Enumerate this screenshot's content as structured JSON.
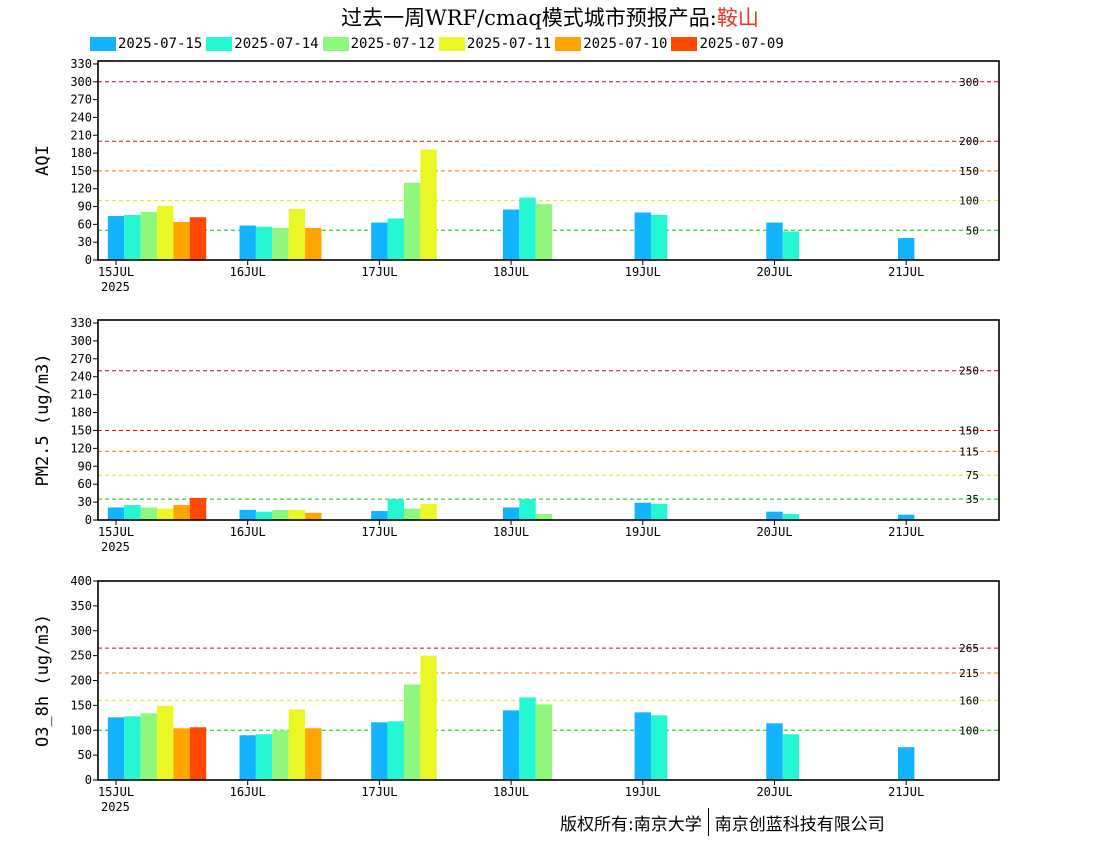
{
  "header": {
    "title": "过去一周WRF/cmaq模式城市预报产品:",
    "city": "鞍山"
  },
  "legend": [
    {
      "label": "2025-07-15",
      "color": "#12b4ff"
    },
    {
      "label": "2025-07-14",
      "color": "#25f7d2"
    },
    {
      "label": "2025-07-12",
      "color": "#8ff77b"
    },
    {
      "label": "2025-07-11",
      "color": "#eaf725"
    },
    {
      "label": "2025-07-10",
      "color": "#ffa400"
    },
    {
      "label": "2025-07-09",
      "color": "#ff4800"
    }
  ],
  "footer": {
    "left": "版权所有:南京大学",
    "right": "南京创蓝科技有限公司"
  },
  "chart_data": [
    {
      "type": "bar",
      "ylabel": "AQI",
      "ylim": [
        0,
        335
      ],
      "yticks": [
        0,
        30,
        60,
        90,
        120,
        150,
        180,
        210,
        240,
        270,
        300,
        330
      ],
      "xticks": [
        "15JUL",
        "16JUL",
        "17JUL",
        "18JUL",
        "19JUL",
        "20JUL",
        "21JUL"
      ],
      "year_label": "2025",
      "thresholds": [
        {
          "value": 300,
          "label": "300",
          "color": "#c8003c"
        },
        {
          "value": 200,
          "label": "200",
          "color": "#dd1111"
        },
        {
          "value": 150,
          "label": "150",
          "color": "#f07800"
        },
        {
          "value": 100,
          "label": "100",
          "color": "#e8e800"
        },
        {
          "value": 50,
          "label": "50",
          "color": "#00c800"
        }
      ],
      "bars": [
        {
          "day": 0,
          "offset": 0,
          "series": 0,
          "value": 74
        },
        {
          "day": 0,
          "offset": 1,
          "series": 1,
          "value": 76
        },
        {
          "day": 0,
          "offset": 2,
          "series": 2,
          "value": 81
        },
        {
          "day": 0,
          "offset": 3,
          "series": 3,
          "value": 91
        },
        {
          "day": 0,
          "offset": 4,
          "series": 4,
          "value": 64
        },
        {
          "day": 0,
          "offset": 5,
          "series": 5,
          "value": 72
        },
        {
          "day": 1,
          "offset": 0,
          "series": 0,
          "value": 58
        },
        {
          "day": 1,
          "offset": 1,
          "series": 1,
          "value": 56
        },
        {
          "day": 1,
          "offset": 2,
          "series": 2,
          "value": 54
        },
        {
          "day": 1,
          "offset": 3,
          "series": 3,
          "value": 86
        },
        {
          "day": 1,
          "offset": 4,
          "series": 4,
          "value": 54
        },
        {
          "day": 2,
          "offset": 0,
          "series": 0,
          "value": 63
        },
        {
          "day": 2,
          "offset": 1,
          "series": 1,
          "value": 70
        },
        {
          "day": 2,
          "offset": 2,
          "series": 2,
          "value": 130
        },
        {
          "day": 2,
          "offset": 3,
          "series": 3,
          "value": 186
        },
        {
          "day": 3,
          "offset": 0,
          "series": 0,
          "value": 85
        },
        {
          "day": 3,
          "offset": 1,
          "series": 1,
          "value": 105
        },
        {
          "day": 3,
          "offset": 2,
          "series": 2,
          "value": 94
        },
        {
          "day": 4,
          "offset": 0,
          "series": 0,
          "value": 80
        },
        {
          "day": 4,
          "offset": 1,
          "series": 1,
          "value": 76
        },
        {
          "day": 5,
          "offset": 0,
          "series": 0,
          "value": 63
        },
        {
          "day": 5,
          "offset": 1,
          "series": 1,
          "value": 48
        },
        {
          "day": 6,
          "offset": 0,
          "series": 0,
          "value": 37
        }
      ]
    },
    {
      "type": "bar",
      "ylabel": "PM2.5 (ug/m3)",
      "ylim": [
        0,
        335
      ],
      "yticks": [
        0,
        30,
        60,
        90,
        120,
        150,
        180,
        210,
        240,
        270,
        300,
        330
      ],
      "xticks": [
        "15JUL",
        "16JUL",
        "17JUL",
        "18JUL",
        "19JUL",
        "20JUL",
        "21JUL"
      ],
      "year_label": "2025",
      "thresholds": [
        {
          "value": 250,
          "label": "250",
          "color": "#c8003c"
        },
        {
          "value": 150,
          "label": "150",
          "color": "#dd1111"
        },
        {
          "value": 115,
          "label": "115",
          "color": "#f07800"
        },
        {
          "value": 75,
          "label": "75",
          "color": "#e8e800"
        },
        {
          "value": 35,
          "label": "35",
          "color": "#00c800"
        }
      ],
      "bars": [
        {
          "day": 0,
          "offset": 0,
          "series": 0,
          "value": 21
        },
        {
          "day": 0,
          "offset": 1,
          "series": 1,
          "value": 25
        },
        {
          "day": 0,
          "offset": 2,
          "series": 2,
          "value": 21
        },
        {
          "day": 0,
          "offset": 3,
          "series": 3,
          "value": 19
        },
        {
          "day": 0,
          "offset": 4,
          "series": 4,
          "value": 25
        },
        {
          "day": 0,
          "offset": 5,
          "series": 5,
          "value": 37
        },
        {
          "day": 1,
          "offset": 0,
          "series": 0,
          "value": 17
        },
        {
          "day": 1,
          "offset": 1,
          "series": 1,
          "value": 14
        },
        {
          "day": 1,
          "offset": 2,
          "series": 2,
          "value": 17
        },
        {
          "day": 1,
          "offset": 3,
          "series": 3,
          "value": 17
        },
        {
          "day": 1,
          "offset": 4,
          "series": 4,
          "value": 12
        },
        {
          "day": 2,
          "offset": 0,
          "series": 0,
          "value": 15
        },
        {
          "day": 2,
          "offset": 1,
          "series": 1,
          "value": 35
        },
        {
          "day": 2,
          "offset": 2,
          "series": 2,
          "value": 19
        },
        {
          "day": 2,
          "offset": 3,
          "series": 3,
          "value": 27
        },
        {
          "day": 3,
          "offset": 0,
          "series": 0,
          "value": 21
        },
        {
          "day": 3,
          "offset": 1,
          "series": 1,
          "value": 35
        },
        {
          "day": 3,
          "offset": 2,
          "series": 2,
          "value": 10
        },
        {
          "day": 4,
          "offset": 0,
          "series": 0,
          "value": 29
        },
        {
          "day": 4,
          "offset": 1,
          "series": 1,
          "value": 27
        },
        {
          "day": 5,
          "offset": 0,
          "series": 0,
          "value": 14
        },
        {
          "day": 5,
          "offset": 1,
          "series": 1,
          "value": 10
        },
        {
          "day": 6,
          "offset": 0,
          "series": 0,
          "value": 9
        }
      ]
    },
    {
      "type": "bar",
      "ylabel": "O3_8h (ug/m3)",
      "ylim": [
        0,
        400
      ],
      "yticks": [
        0,
        50,
        100,
        150,
        200,
        250,
        300,
        350,
        400
      ],
      "xticks": [
        "15JUL",
        "16JUL",
        "17JUL",
        "18JUL",
        "19JUL",
        "20JUL",
        "21JUL"
      ],
      "year_label": "2025",
      "thresholds": [
        {
          "value": 265,
          "label": "265",
          "color": "#c8003c"
        },
        {
          "value": 215,
          "label": "215",
          "color": "#f07800"
        },
        {
          "value": 160,
          "label": "160",
          "color": "#e8e800"
        },
        {
          "value": 100,
          "label": "100",
          "color": "#00c800"
        }
      ],
      "bars": [
        {
          "day": 0,
          "offset": 0,
          "series": 0,
          "value": 126
        },
        {
          "day": 0,
          "offset": 1,
          "series": 1,
          "value": 128
        },
        {
          "day": 0,
          "offset": 2,
          "series": 2,
          "value": 134
        },
        {
          "day": 0,
          "offset": 3,
          "series": 3,
          "value": 149
        },
        {
          "day": 0,
          "offset": 4,
          "series": 4,
          "value": 104
        },
        {
          "day": 0,
          "offset": 5,
          "series": 5,
          "value": 106
        },
        {
          "day": 1,
          "offset": 0,
          "series": 0,
          "value": 90
        },
        {
          "day": 1,
          "offset": 1,
          "series": 1,
          "value": 92
        },
        {
          "day": 1,
          "offset": 2,
          "series": 2,
          "value": 100
        },
        {
          "day": 1,
          "offset": 3,
          "series": 3,
          "value": 142
        },
        {
          "day": 1,
          "offset": 4,
          "series": 4,
          "value": 104
        },
        {
          "day": 2,
          "offset": 0,
          "series": 0,
          "value": 116
        },
        {
          "day": 2,
          "offset": 1,
          "series": 1,
          "value": 118
        },
        {
          "day": 2,
          "offset": 2,
          "series": 2,
          "value": 192
        },
        {
          "day": 2,
          "offset": 3,
          "series": 3,
          "value": 250
        },
        {
          "day": 3,
          "offset": 0,
          "series": 0,
          "value": 140
        },
        {
          "day": 3,
          "offset": 1,
          "series": 1,
          "value": 166
        },
        {
          "day": 3,
          "offset": 2,
          "series": 2,
          "value": 152
        },
        {
          "day": 4,
          "offset": 0,
          "series": 0,
          "value": 136
        },
        {
          "day": 4,
          "offset": 1,
          "series": 1,
          "value": 130
        },
        {
          "day": 5,
          "offset": 0,
          "series": 0,
          "value": 114
        },
        {
          "day": 5,
          "offset": 1,
          "series": 1,
          "value": 92
        },
        {
          "day": 6,
          "offset": 0,
          "series": 0,
          "value": 66
        }
      ]
    }
  ]
}
